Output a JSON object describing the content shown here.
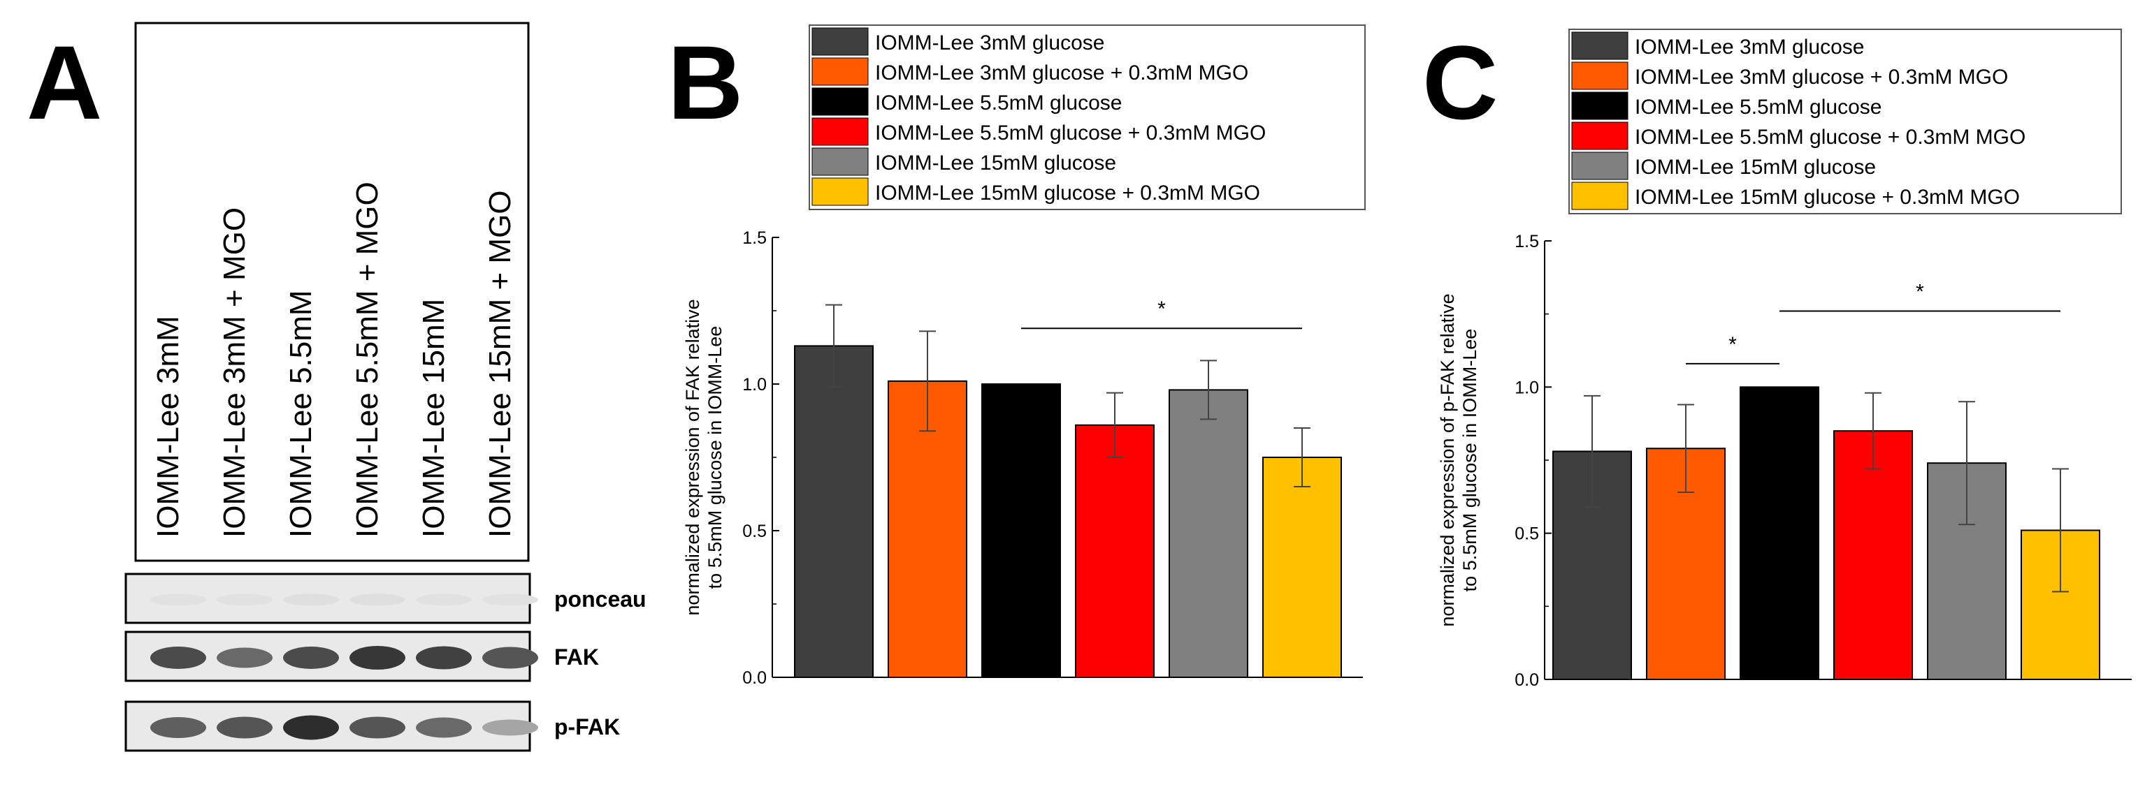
{
  "panels": {
    "a": {
      "letter": "A",
      "lanes": [
        "IOMM-Lee 3mM",
        "IOMM-Lee 3mM + MGO",
        "IOMM-Lee 5.5mM",
        "IOMM-Lee 5.5mM + MGO",
        "IOMM-Lee 15mM",
        "IOMM-Lee 15mM + MGO"
      ],
      "blots": [
        {
          "label": "ponceau",
          "intensity": [
            0.05,
            0.05,
            0.06,
            0.06,
            0.05,
            0.05
          ]
        },
        {
          "label": "FAK",
          "intensity": [
            0.8,
            0.65,
            0.8,
            0.9,
            0.85,
            0.75
          ]
        },
        {
          "label": "p-FAK",
          "intensity": [
            0.7,
            0.75,
            0.95,
            0.75,
            0.65,
            0.35
          ]
        }
      ]
    },
    "b": {
      "letter": "B"
    },
    "c": {
      "letter": "C"
    }
  },
  "legend": [
    {
      "label": "IOMM-Lee    3mM glucose",
      "color": "#3f3f3f"
    },
    {
      "label": "IOMM-Lee    3mM glucose + 0.3mM MGO",
      "color": "#ff5a00"
    },
    {
      "label": "IOMM-Lee 5.5mM glucose",
      "color": "#000000"
    },
    {
      "label": "IOMM-Lee 5.5mM glucose + 0.3mM MGO",
      "color": "#ff0000"
    },
    {
      "label": "IOMM-Lee  15mM glucose",
      "color": "#808080"
    },
    {
      "label": "IOMM-Lee  15mM glucose + 0.3mM MGO",
      "color": "#ffc000"
    }
  ],
  "chart_data": [
    {
      "type": "bar",
      "panel": "B",
      "ylabel": "normalized expression of FAK relative to 5.5mM glucose in IOMM-Lee",
      "ylabel_lines": [
        "normalized expression of FAK relative",
        "to 5.5mM glucose in IOMM-Lee"
      ],
      "ylim": [
        0.0,
        1.5
      ],
      "yticks": [
        "0.0",
        "0.5",
        "1.0",
        "1.5"
      ],
      "series": [
        {
          "name": "IOMM-Lee    3mM glucose",
          "value": 1.13,
          "error": 0.14
        },
        {
          "name": "IOMM-Lee    3mM glucose + 0.3mM MGO",
          "value": 1.01,
          "error": 0.17
        },
        {
          "name": "IOMM-Lee 5.5mM glucose",
          "value": 1.0,
          "error": 0
        },
        {
          "name": "IOMM-Lee 5.5mM glucose + 0.3mM MGO",
          "value": 0.86,
          "error": 0.11
        },
        {
          "name": "IOMM-Lee  15mM glucose",
          "value": 0.98,
          "error": 0.1
        },
        {
          "name": "IOMM-Lee  15mM glucose + 0.3mM MGO",
          "value": 0.75,
          "error": 0.1
        }
      ],
      "significance": [
        {
          "from": 2,
          "to": 5,
          "y": 1.19,
          "label": "*"
        }
      ]
    },
    {
      "type": "bar",
      "panel": "C",
      "ylabel": "normalized expression of p-FAK relative to 5.5mM glucose in IOMM-Lee",
      "ylabel_lines": [
        "normalized expression of p-FAK relative",
        "to 5.5mM glucose in IOMM-Lee"
      ],
      "ylim": [
        0.0,
        1.5
      ],
      "yticks": [
        "0.0",
        "0.5",
        "1.0",
        "1.5"
      ],
      "series": [
        {
          "name": "IOMM-Lee    3mM glucose",
          "value": 0.78,
          "error": 0.19
        },
        {
          "name": "IOMM-Lee    3mM glucose + 0.3mM MGO",
          "value": 0.79,
          "error": 0.15
        },
        {
          "name": "IOMM-Lee 5.5mM glucose",
          "value": 1.0,
          "error": 0
        },
        {
          "name": "IOMM-Lee 5.5mM glucose + 0.3mM MGO",
          "value": 0.85,
          "error": 0.13
        },
        {
          "name": "IOMM-Lee  15mM glucose",
          "value": 0.74,
          "error": 0.21
        },
        {
          "name": "IOMM-Lee  15mM glucose + 0.3mM MGO",
          "value": 0.51,
          "error": 0.21
        }
      ],
      "significance": [
        {
          "from": 1,
          "to": 2,
          "y": 1.08,
          "label": "*"
        },
        {
          "from": 2,
          "to": 5,
          "y": 1.26,
          "label": "*"
        }
      ]
    }
  ]
}
